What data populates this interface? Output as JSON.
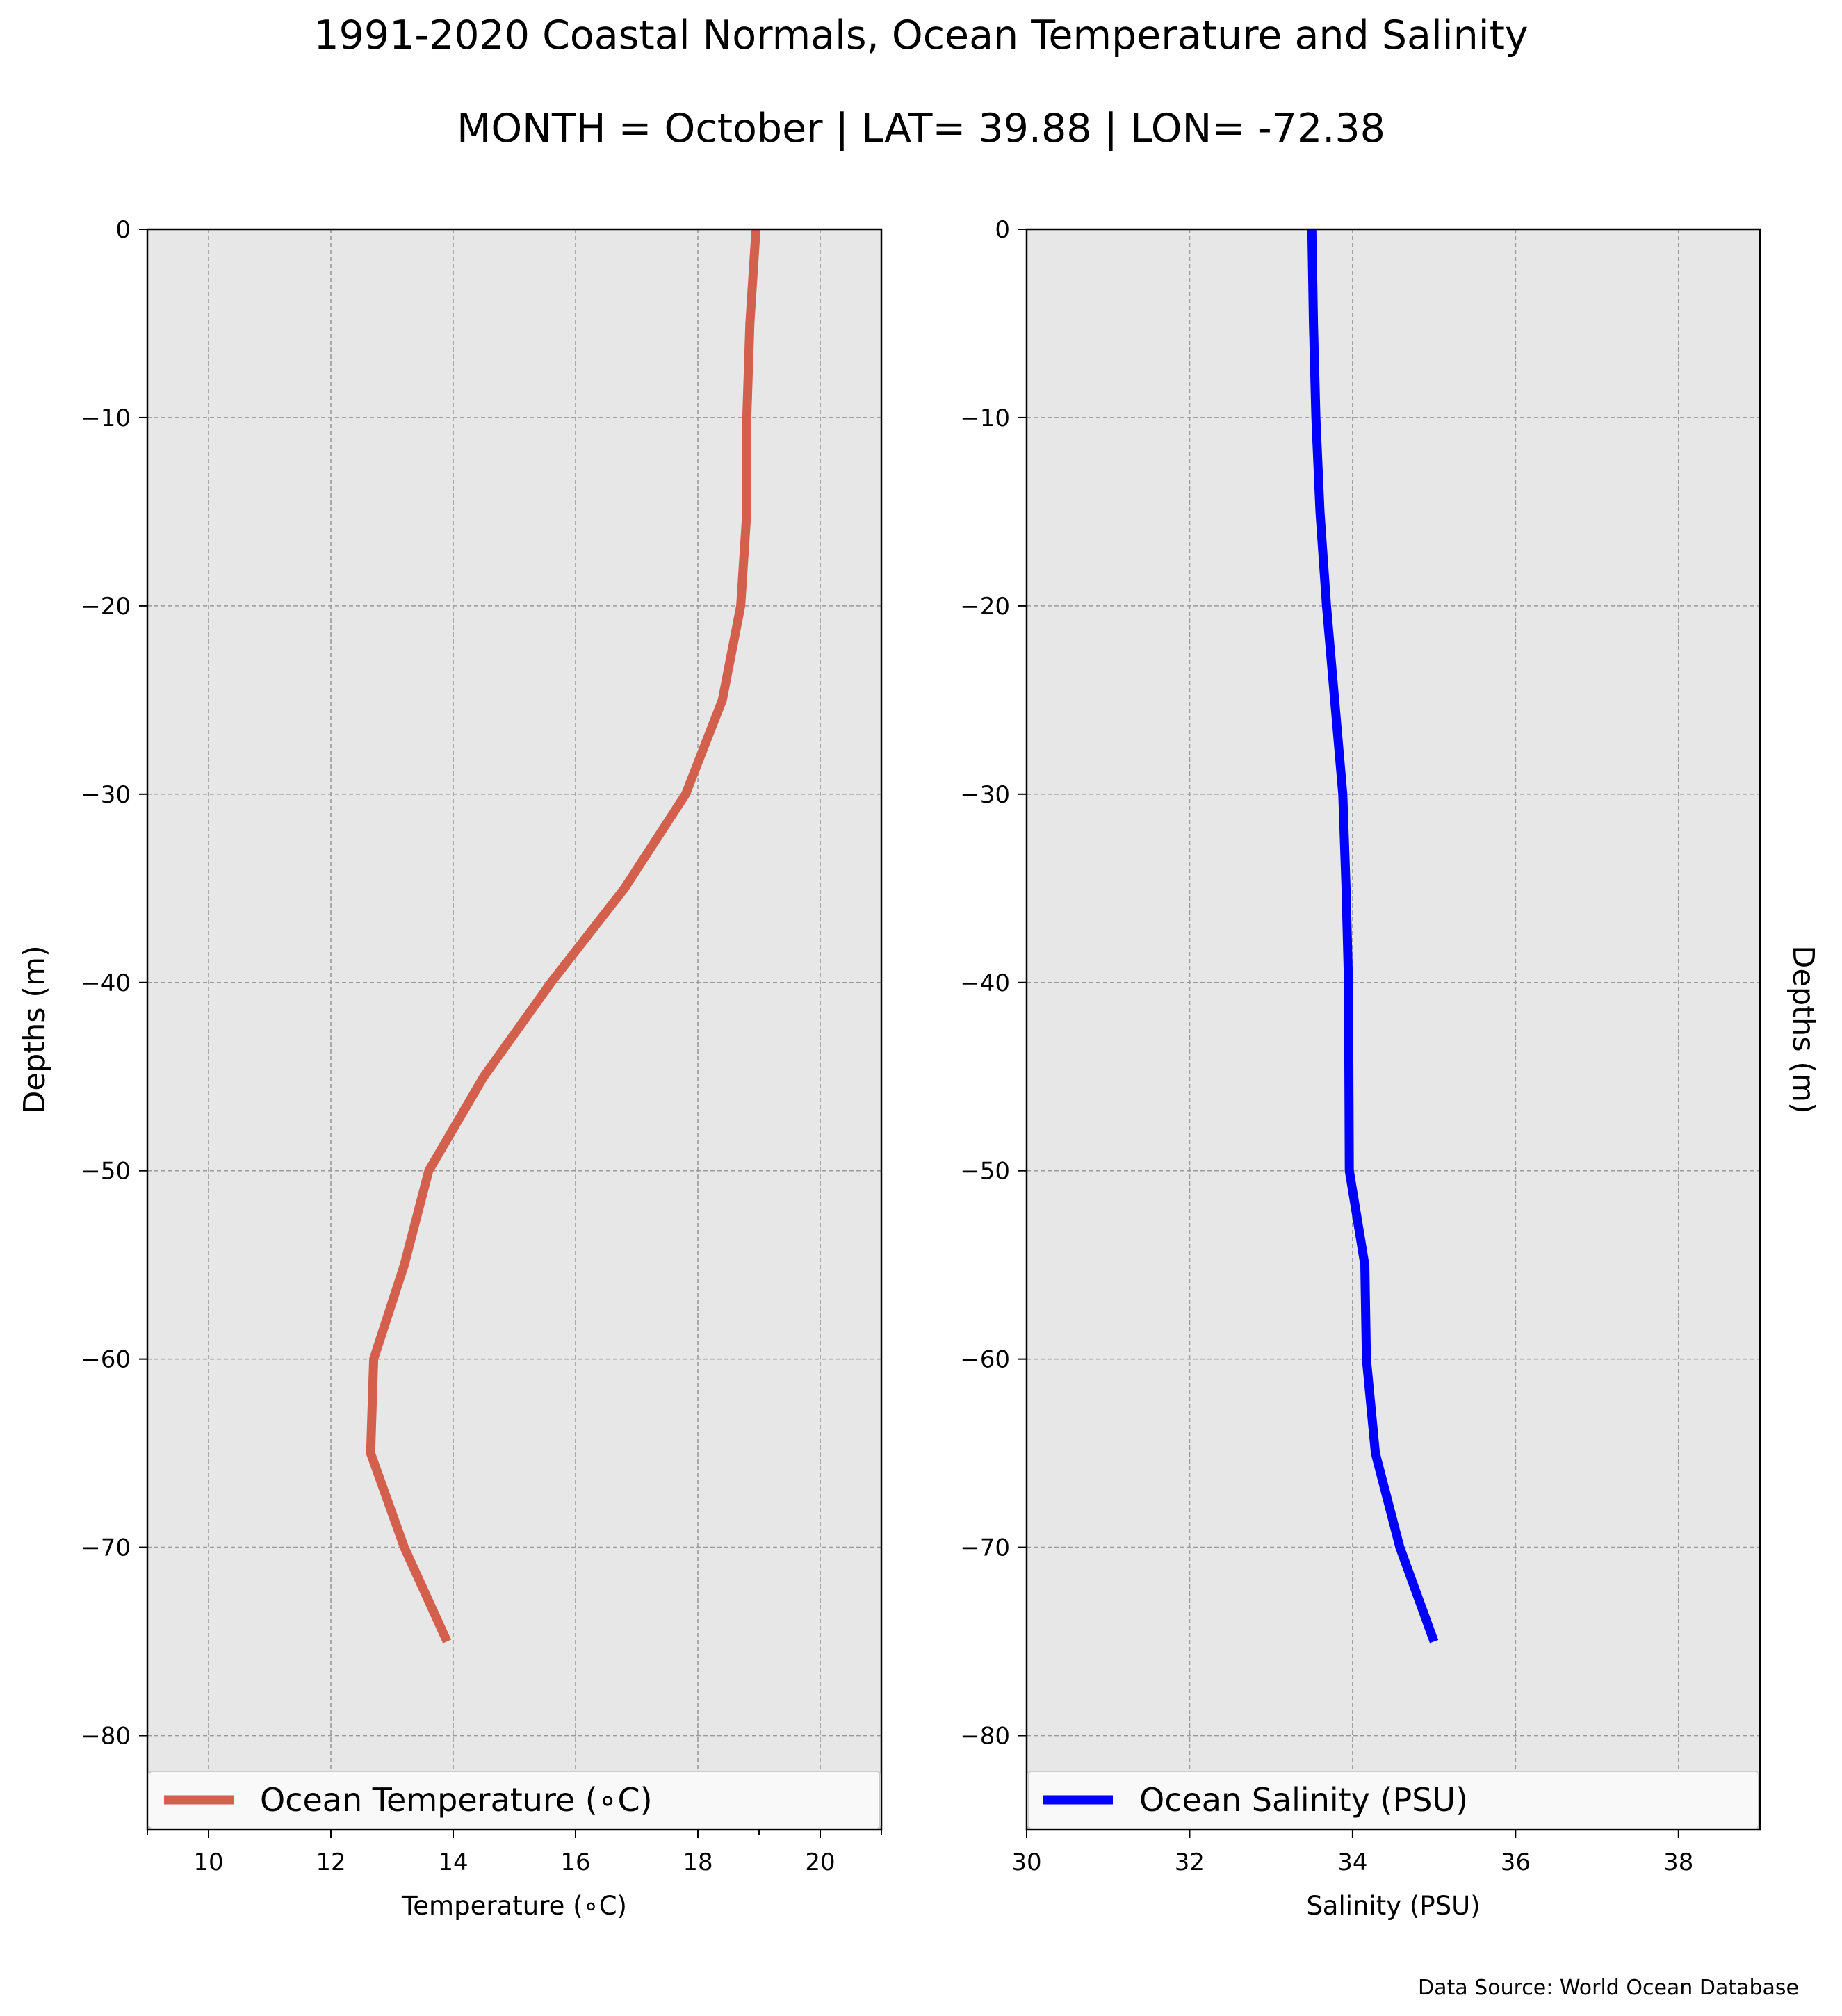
{
  "title": "1991-2020 Coastal Normals, Ocean Temperature and Salinity",
  "subtitle": "MONTH = October | LAT= 39.88 | LON= -72.38",
  "source": "Data Source: World Ocean Database",
  "chart_data": [
    {
      "type": "line",
      "xlabel": "Temperature (∘C)",
      "ylabel": "Depths (m)",
      "xlim": [
        9,
        21
      ],
      "ylim": [
        -85,
        0
      ],
      "xticks": [
        10,
        12,
        14,
        16,
        18,
        20
      ],
      "yticks": [
        0,
        -10,
        -20,
        -30,
        -40,
        -50,
        -60,
        -70,
        -80
      ],
      "grid": true,
      "legend_position": "bottom",
      "series": [
        {
          "name": "Ocean Temperature (∘C)",
          "color": "#d35f4d",
          "x": [
            18.95,
            18.85,
            18.8,
            18.8,
            18.8,
            18.7,
            18.4,
            17.8,
            16.8,
            15.6,
            14.5,
            13.6,
            13.2,
            12.7,
            12.65,
            13.2,
            13.9
          ],
          "y": [
            0,
            -5,
            -10,
            -12,
            -15,
            -20,
            -25,
            -30,
            -35,
            -40,
            -45,
            -50,
            -55,
            -60,
            -65,
            -70,
            -75
          ]
        }
      ]
    },
    {
      "type": "line",
      "xlabel": "Salinity (PSU)",
      "ylabel": "Depths (m)",
      "xlim": [
        30,
        39
      ],
      "ylim": [
        -85,
        0
      ],
      "xticks": [
        30,
        32,
        34,
        36,
        38
      ],
      "yticks": [
        0,
        -10,
        -20,
        -30,
        -40,
        -50,
        -60,
        -70,
        -80
      ],
      "grid": true,
      "legend_position": "bottom",
      "series": [
        {
          "name": "Ocean Salinity (PSU)",
          "color": "#0000ff",
          "x": [
            33.5,
            33.52,
            33.55,
            33.6,
            33.68,
            33.78,
            33.88,
            33.92,
            33.95,
            33.96,
            34.15,
            34.17,
            34.28,
            34.58,
            35.0
          ],
          "y": [
            0,
            -5,
            -10,
            -15,
            -20,
            -25,
            -30,
            -35,
            -40,
            -50,
            -55,
            -60,
            -65,
            -70,
            -75
          ]
        }
      ]
    }
  ]
}
